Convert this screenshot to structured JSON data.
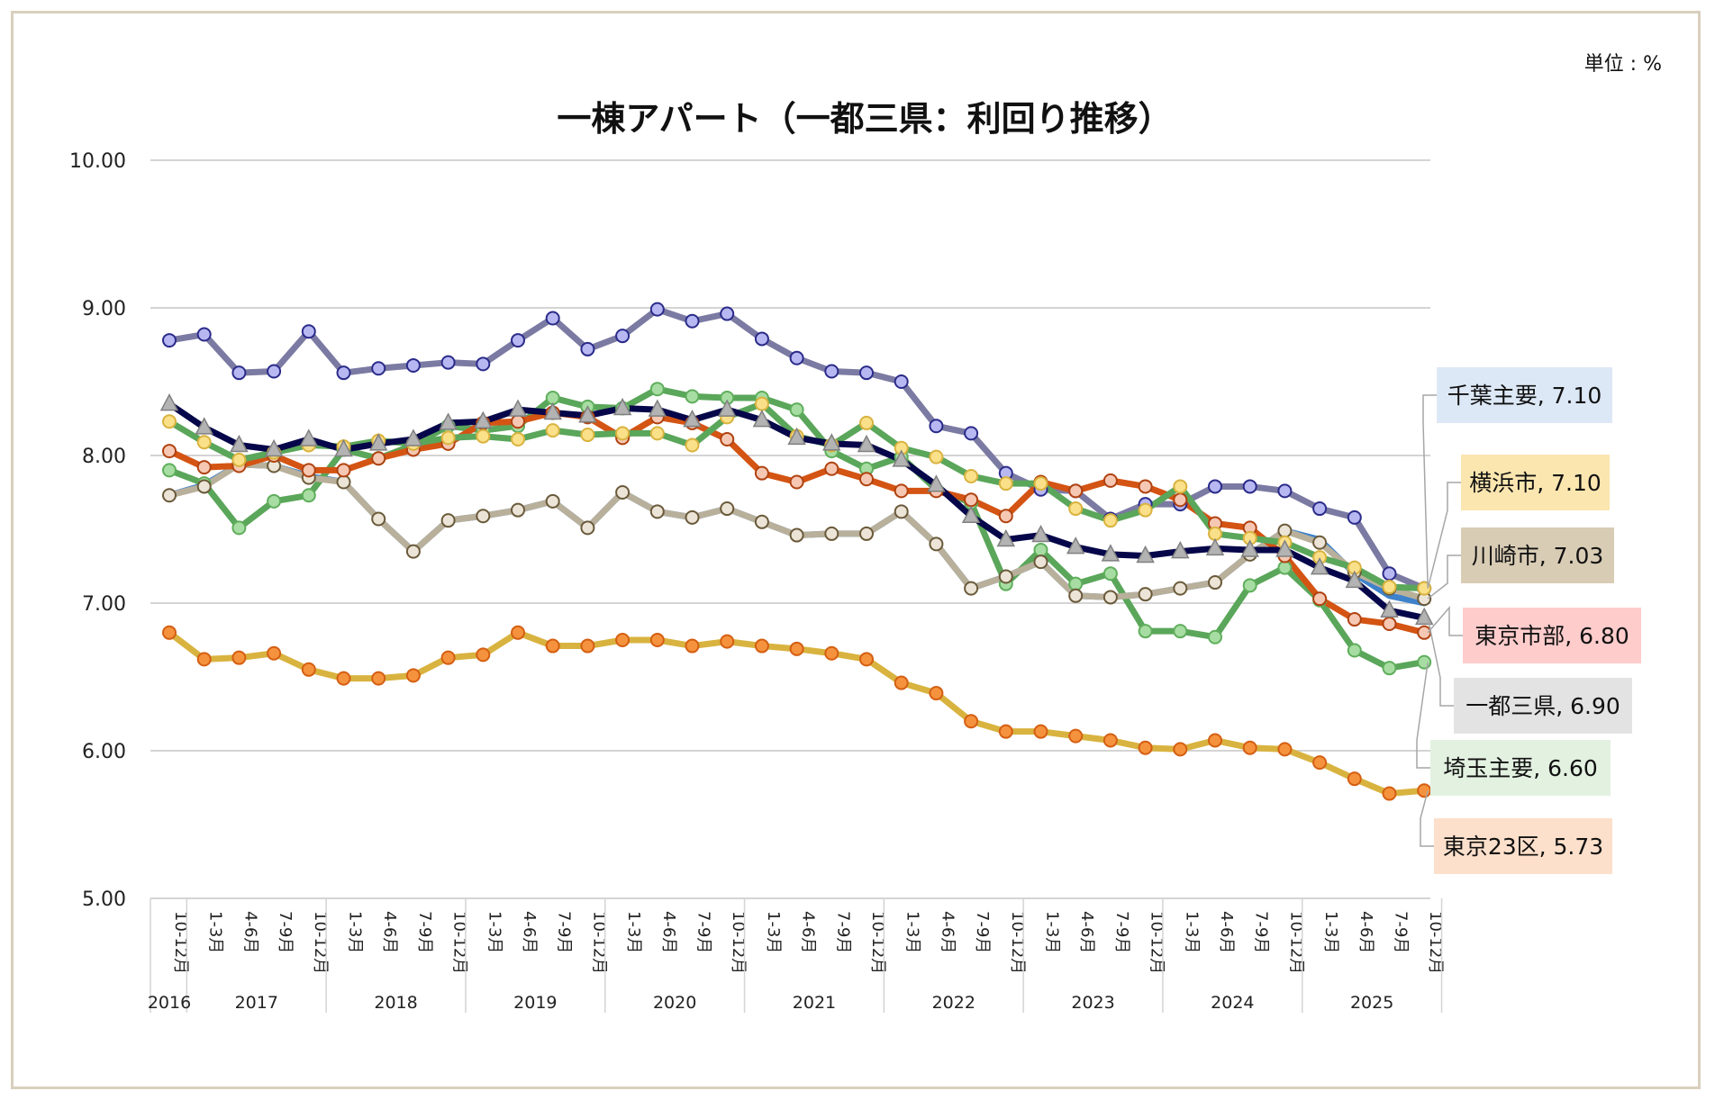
{
  "unit_label": "単位 : %",
  "chart_data": {
    "type": "line",
    "title": "一棟アパート（一都三県：利回り推移）",
    "ylim": [
      5.0,
      10.0
    ],
    "y_ticks": [
      "5.00",
      "6.00",
      "7.00",
      "8.00",
      "9.00",
      "10.00"
    ],
    "y_tick_values": [
      5,
      6,
      7,
      8,
      9,
      10
    ],
    "grid": true,
    "categories": [
      "10-12月",
      "1-3月",
      "4-6月",
      "7-9月",
      "10-12月",
      "1-3月",
      "4-6月",
      "7-9月",
      "10-12月",
      "1-3月",
      "4-6月",
      "7-9月",
      "10-12月",
      "1-3月",
      "4-6月",
      "7-9月",
      "10-12月",
      "1-3月",
      "4-6月",
      "7-9月",
      "10-12月",
      "1-3月",
      "4-6月",
      "7-9月",
      "10-12月",
      "1-3月",
      "4-6月",
      "7-9月",
      "10-12月",
      "1-3月",
      "4-6月",
      "7-9月",
      "10-12月",
      "1-3月",
      "4-6月",
      "7-9月",
      "10-12月"
    ],
    "years": [
      {
        "label": "2016",
        "start": 0,
        "end": 0
      },
      {
        "label": "2017",
        "start": 1,
        "end": 4
      },
      {
        "label": "2018",
        "start": 5,
        "end": 8
      },
      {
        "label": "2019",
        "start": 9,
        "end": 12
      },
      {
        "label": "2020",
        "start": 13,
        "end": 16
      },
      {
        "label": "2021",
        "start": 17,
        "end": 20
      },
      {
        "label": "2022",
        "start": 21,
        "end": 24
      },
      {
        "label": "2023",
        "start": 25,
        "end": 28
      },
      {
        "label": "2024",
        "start": 29,
        "end": 32
      },
      {
        "label": "2025",
        "start": 33,
        "end": 36
      }
    ],
    "series": [
      {
        "name": "東京23区",
        "label": "東京23区, 5.73",
        "line_color": "#d9b33f",
        "marker_fill": "#f5923e",
        "marker_stroke": "#d45f12",
        "marker": "circle",
        "label_bg": "#fde0cb",
        "values": [
          6.8,
          6.62,
          6.63,
          6.66,
          6.55,
          6.49,
          6.49,
          6.51,
          6.63,
          6.65,
          6.8,
          6.71,
          6.71,
          6.75,
          6.75,
          6.71,
          6.74,
          6.71,
          6.69,
          6.66,
          6.62,
          6.46,
          6.39,
          6.2,
          6.13,
          6.13,
          6.1,
          6.07,
          6.02,
          6.01,
          6.07,
          6.02,
          6.01,
          5.92,
          5.81,
          5.71,
          5.73
        ]
      },
      {
        "name": "東京市部",
        "label": "東京市部, 6.80",
        "line_color": "#d45413",
        "marker_fill": "#f6c8b4",
        "marker_stroke": "#b04210",
        "marker": "circle",
        "label_bg": "#ffcccc",
        "values": [
          8.03,
          7.92,
          7.93,
          8.0,
          7.9,
          7.9,
          7.98,
          8.04,
          8.08,
          8.22,
          8.23,
          8.29,
          8.26,
          8.12,
          8.26,
          8.22,
          8.11,
          7.88,
          7.82,
          7.91,
          7.84,
          7.76,
          7.76,
          7.7,
          7.59,
          7.82,
          7.76,
          7.83,
          7.79,
          7.7,
          7.54,
          7.51,
          7.32,
          7.03,
          6.89,
          6.86,
          6.8
        ]
      },
      {
        "name": "千葉主要",
        "label": "千葉主要, 7.10",
        "line_color": "#7b7aa3",
        "marker_fill": "#b7b8f2",
        "marker_stroke": "#2b2b8a",
        "marker": "circle",
        "label_bg": "#dde8f6",
        "values": [
          8.78,
          8.82,
          8.56,
          8.57,
          8.84,
          8.56,
          8.59,
          8.61,
          8.63,
          8.62,
          8.78,
          8.93,
          8.72,
          8.81,
          8.99,
          8.91,
          8.96,
          8.79,
          8.66,
          8.57,
          8.56,
          8.5,
          8.2,
          8.15,
          7.88,
          7.77,
          7.76,
          7.57,
          7.67,
          7.67,
          7.79,
          7.79,
          7.76,
          7.64,
          7.58,
          7.2,
          7.1
        ]
      },
      {
        "name": "埼玉主要",
        "label": "埼玉主要, 6.60",
        "line_color": "#5aa65a",
        "marker_fill": "#a7dda2",
        "marker_stroke": "#5fae5c",
        "marker": "circle",
        "label_bg": "#e3f1e1",
        "values": [
          7.9,
          7.81,
          7.51,
          7.69,
          7.73,
          8.04,
          7.98,
          8.07,
          8.2,
          8.17,
          8.2,
          8.39,
          8.33,
          8.32,
          8.45,
          8.4,
          8.39,
          8.39,
          8.31,
          8.03,
          7.91,
          7.99,
          7.77,
          7.68,
          7.13,
          7.36,
          7.13,
          7.2,
          6.81,
          6.81,
          6.77,
          7.12,
          7.24,
          7.02,
          6.68,
          6.56,
          6.6
        ]
      },
      {
        "name": "横浜市",
        "label": "横浜市, 7.10",
        "line_color": "#5aa65a",
        "marker_fill": "#fbe08a",
        "marker_stroke": "#d9b33f",
        "marker": "circle",
        "label_bg": "#fbe6b0",
        "values": [
          8.23,
          8.09,
          7.97,
          8.02,
          8.07,
          8.06,
          8.1,
          8.08,
          8.12,
          8.13,
          8.11,
          8.17,
          8.14,
          8.15,
          8.15,
          8.07,
          8.26,
          8.35,
          8.13,
          8.07,
          8.22,
          8.05,
          7.99,
          7.86,
          7.81,
          7.81,
          7.64,
          7.56,
          7.63,
          7.79,
          7.47,
          7.44,
          7.41,
          7.31,
          7.24,
          7.11,
          7.1
        ]
      },
      {
        "name": "川崎市",
        "label": "川崎市, 7.03",
        "line_color": "#b9b09b",
        "marker_fill": "#ece4d7",
        "marker_stroke": "#6a5a3a",
        "marker": "circle",
        "label_bg": "#d9ccb5",
        "values": [
          7.73,
          7.79,
          7.94,
          7.93,
          7.85,
          7.82,
          7.57,
          7.35,
          7.56,
          7.59,
          7.63,
          7.69,
          7.51,
          7.75,
          7.62,
          7.58,
          7.64,
          7.55,
          7.46,
          7.47,
          7.47,
          7.62,
          7.4,
          7.1,
          7.18,
          7.28,
          7.05,
          7.04,
          7.06,
          7.1,
          7.14,
          7.33,
          7.49,
          7.41,
          7.21,
          7.1,
          7.03
        ]
      },
      {
        "name": "一都三県",
        "label": "一都三県, 6.90",
        "line_color": "#06064a",
        "marker_fill": "#b3b3b3",
        "marker_stroke": "#808080",
        "marker": "triangle",
        "label_bg": "#e3e3e3",
        "values": [
          8.35,
          8.19,
          8.07,
          8.04,
          8.11,
          8.04,
          8.08,
          8.11,
          8.22,
          8.23,
          8.31,
          8.29,
          8.27,
          8.32,
          8.31,
          8.24,
          8.31,
          8.24,
          8.12,
          8.08,
          8.07,
          7.97,
          7.8,
          7.59,
          7.43,
          7.46,
          7.38,
          7.33,
          7.32,
          7.35,
          7.37,
          7.36,
          7.36,
          7.24,
          7.15,
          6.95,
          6.9
        ]
      },
      {
        "name": "blue-series",
        "label": "",
        "line_color": "#3e82cc",
        "marker_fill": "none",
        "marker_stroke": "none",
        "marker": "none",
        "label_bg": "none",
        "values": [
          7.73,
          7.8,
          7.94,
          7.93,
          7.86,
          7.82,
          7.57,
          7.35,
          7.56,
          7.59,
          7.63,
          7.69,
          7.51,
          7.75,
          7.62,
          7.58,
          7.64,
          7.55,
          7.46,
          7.47,
          7.47,
          7.62,
          7.4,
          7.1,
          7.18,
          7.28,
          7.05,
          7.04,
          7.06,
          7.1,
          7.14,
          7.33,
          7.49,
          7.43,
          7.2,
          7.05,
          7.0
        ]
      }
    ]
  }
}
